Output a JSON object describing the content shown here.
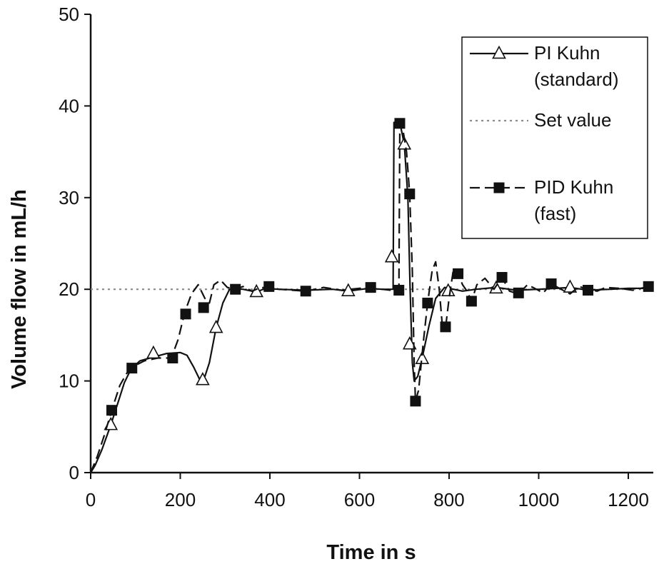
{
  "chart_data": {
    "type": "line",
    "title": "",
    "xlabel": "Time in s",
    "ylabel": "Volume flow  in  mL/h",
    "xlim": [
      0,
      1250
    ],
    "ylim": [
      0,
      50
    ],
    "x_ticks": [
      0,
      200,
      400,
      600,
      800,
      1000,
      1200
    ],
    "y_ticks": [
      0,
      10,
      20,
      30,
      40,
      50
    ],
    "grid": false,
    "legend_position": "top-right",
    "series": [
      {
        "name": "PI Kuhn (standard)",
        "legend_lines": [
          "PI Kuhn",
          "(standard)"
        ],
        "style": "solid",
        "marker": "open-triangle",
        "color": "#111111",
        "points": [
          [
            0,
            0
          ],
          [
            10,
            0.8
          ],
          [
            25,
            2.5
          ],
          [
            45,
            5.2
          ],
          [
            60,
            7.5
          ],
          [
            75,
            9.8
          ],
          [
            90,
            11.3
          ],
          [
            110,
            12.2
          ],
          [
            140,
            12.6
          ],
          [
            170,
            13
          ],
          [
            200,
            13.1
          ],
          [
            215,
            12.8
          ],
          [
            230,
            11.5
          ],
          [
            245,
            10
          ],
          [
            255,
            10.5
          ],
          [
            265,
            12
          ],
          [
            280,
            15.8
          ],
          [
            295,
            18.5
          ],
          [
            310,
            20
          ],
          [
            320,
            20.1
          ],
          [
            340,
            20
          ],
          [
            360,
            19.8
          ],
          [
            370,
            19.7
          ],
          [
            390,
            20.1
          ],
          [
            420,
            20
          ],
          [
            480,
            19.9
          ],
          [
            540,
            20
          ],
          [
            575,
            19.8
          ],
          [
            620,
            20.1
          ],
          [
            650,
            20
          ],
          [
            675,
            20
          ],
          [
            677,
            38.2
          ],
          [
            690,
            38.2
          ],
          [
            700,
            35.8
          ],
          [
            708,
            30
          ],
          [
            713,
            20
          ],
          [
            718,
            12
          ],
          [
            722,
            10
          ],
          [
            730,
            10.5
          ],
          [
            740,
            12.5
          ],
          [
            755,
            16
          ],
          [
            770,
            19
          ],
          [
            790,
            20.2
          ],
          [
            800,
            20.1
          ],
          [
            830,
            19.8
          ],
          [
            860,
            20
          ],
          [
            905,
            20.2
          ],
          [
            950,
            19.9
          ],
          [
            1000,
            20
          ],
          [
            1040,
            20.1
          ],
          [
            1070,
            20.2
          ],
          [
            1110,
            19.9
          ],
          [
            1160,
            20
          ],
          [
            1200,
            20.1
          ],
          [
            1245,
            20.1
          ]
        ],
        "markers": [
          [
            45,
            5.2
          ],
          [
            140,
            13
          ],
          [
            250,
            10.1
          ],
          [
            280,
            15.8
          ],
          [
            370,
            19.7
          ],
          [
            575,
            19.8
          ],
          [
            672,
            23.5
          ],
          [
            700,
            35.8
          ],
          [
            712,
            14
          ],
          [
            740,
            12.4
          ],
          [
            798,
            19.8
          ],
          [
            905,
            20.1
          ],
          [
            1070,
            20.2
          ]
        ]
      },
      {
        "name": "Set value",
        "legend_lines": [
          "Set value"
        ],
        "style": "dotted",
        "marker": "none",
        "color": "#8a8a8a",
        "points": [
          [
            0,
            20
          ],
          [
            1250,
            20
          ]
        ]
      },
      {
        "name": "PID Kuhn (fast)",
        "legend_lines": [
          "PID Kuhn",
          "(fast)"
        ],
        "style": "dashed",
        "marker": "filled-square",
        "color": "#111111",
        "points": [
          [
            0,
            0
          ],
          [
            15,
            1.8
          ],
          [
            30,
            4
          ],
          [
            47,
            6.8
          ],
          [
            65,
            9.5
          ],
          [
            80,
            10.8
          ],
          [
            92,
            11.5
          ],
          [
            120,
            12.2
          ],
          [
            150,
            12.5
          ],
          [
            180,
            12.5
          ],
          [
            195,
            14.5
          ],
          [
            210,
            17.5
          ],
          [
            225,
            19.5
          ],
          [
            240,
            20.5
          ],
          [
            255,
            19
          ],
          [
            265,
            18.5
          ],
          [
            275,
            20.5
          ],
          [
            290,
            21
          ],
          [
            305,
            20.2
          ],
          [
            323,
            20
          ],
          [
            340,
            20.3
          ],
          [
            360,
            19.8
          ],
          [
            375,
            20.1
          ],
          [
            398,
            20.3
          ],
          [
            420,
            20
          ],
          [
            450,
            19.9
          ],
          [
            480,
            19.8
          ],
          [
            520,
            20.2
          ],
          [
            560,
            19.9
          ],
          [
            600,
            20.1
          ],
          [
            625,
            20.2
          ],
          [
            650,
            20
          ],
          [
            670,
            19.9
          ],
          [
            688,
            19.9
          ],
          [
            690,
            38
          ],
          [
            695,
            38
          ],
          [
            705,
            35
          ],
          [
            712,
            30.4
          ],
          [
            718,
            22
          ],
          [
            722,
            12
          ],
          [
            725,
            7.8
          ],
          [
            732,
            9
          ],
          [
            742,
            14
          ],
          [
            752,
            18.5
          ],
          [
            762,
            22
          ],
          [
            770,
            23
          ],
          [
            778,
            20
          ],
          [
            785,
            16
          ],
          [
            792,
            15.8
          ],
          [
            800,
            19
          ],
          [
            810,
            22.3
          ],
          [
            820,
            21.8
          ],
          [
            830,
            20.5
          ],
          [
            840,
            19.8
          ],
          [
            850,
            18.7
          ],
          [
            862,
            20.5
          ],
          [
            880,
            21.2
          ],
          [
            900,
            20
          ],
          [
            918,
            21.3
          ],
          [
            935,
            19.8
          ],
          [
            955,
            19.5
          ],
          [
            975,
            20.5
          ],
          [
            995,
            20
          ],
          [
            1010,
            19.6
          ],
          [
            1028,
            20.6
          ],
          [
            1050,
            20
          ],
          [
            1070,
            19.5
          ],
          [
            1090,
            20.3
          ],
          [
            1110,
            20
          ],
          [
            1130,
            19.8
          ],
          [
            1150,
            20.2
          ],
          [
            1180,
            20.1
          ],
          [
            1210,
            19.9
          ],
          [
            1245,
            20.3
          ]
        ],
        "markers": [
          [
            47,
            6.8
          ],
          [
            92,
            11.4
          ],
          [
            183,
            12.5
          ],
          [
            212,
            17.3
          ],
          [
            252,
            18
          ],
          [
            323,
            20
          ],
          [
            398,
            20.3
          ],
          [
            480,
            19.8
          ],
          [
            625,
            20.2
          ],
          [
            688,
            19.9
          ],
          [
            690,
            38.1
          ],
          [
            712,
            30.4
          ],
          [
            725,
            7.8
          ],
          [
            752,
            18.5
          ],
          [
            792,
            15.9
          ],
          [
            820,
            21.7
          ],
          [
            850,
            18.7
          ],
          [
            918,
            21.3
          ],
          [
            955,
            19.6
          ],
          [
            1028,
            20.6
          ],
          [
            1110,
            19.9
          ],
          [
            1245,
            20.3
          ]
        ]
      }
    ]
  }
}
